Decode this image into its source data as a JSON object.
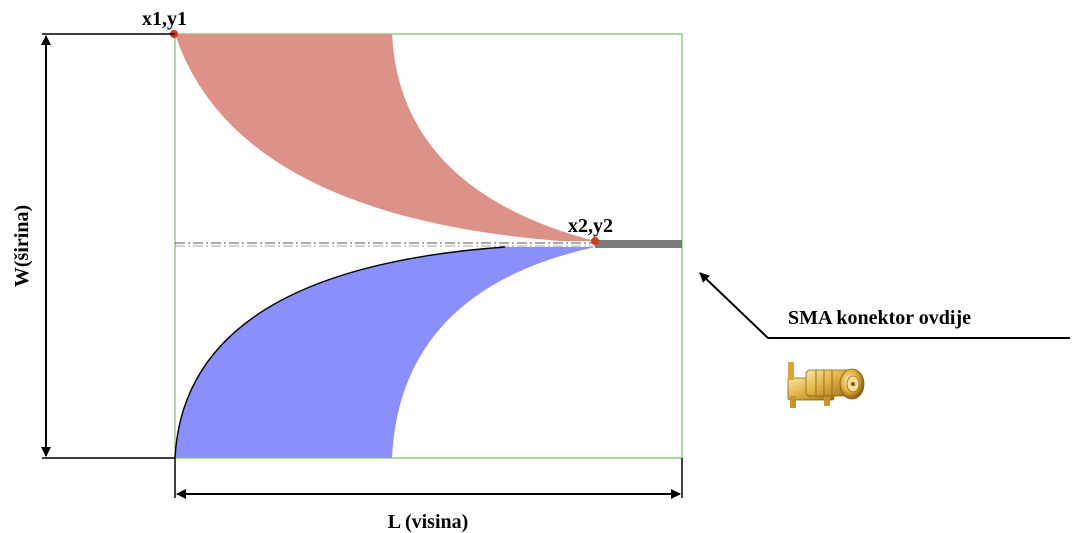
{
  "labels": {
    "point_start": "x1,y1",
    "point_end": "x2,y2",
    "width_dimension": "W(širina)",
    "length_dimension": "L (visina)",
    "connector_note": "SMA konektor ovdije"
  },
  "colors": {
    "upper_patch": "#dc9289",
    "lower_patch": "#8a8ffc",
    "substrate_outline": "#8fd17a",
    "feed_line": "#7a7a7a",
    "marker_point": "#d63a1e",
    "dimension_lines": "#000000"
  },
  "icons": {
    "connector_image": "sma-connector-icon"
  }
}
